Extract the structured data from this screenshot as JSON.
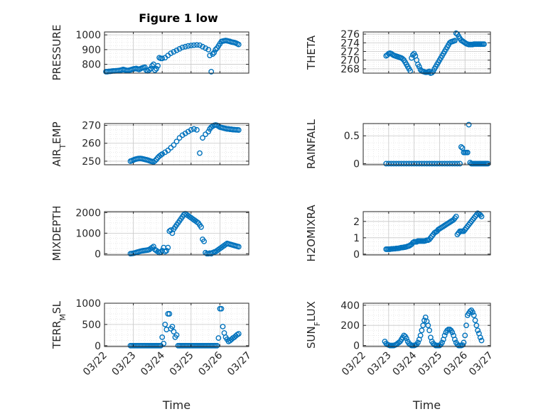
{
  "figure": {
    "title": "Figure 1 low",
    "marker_color": "#0072BD",
    "axis_color": "#262626",
    "grid_color": "#dcdcdc"
  },
  "chart_data": [
    {
      "type": "scatter",
      "ylabel": "PRESSURE",
      "ylabel_sub": "",
      "ylabel_tail": "",
      "xlabel": "",
      "xlim": [
        0,
        5
      ],
      "ylim": [
        740,
        1020
      ],
      "yticks": [
        800,
        900,
        1000
      ],
      "ytick_labels": [
        "800",
        "900",
        "1000"
      ],
      "x": [
        0.05,
        0.1,
        0.15,
        0.2,
        0.25,
        0.3,
        0.35,
        0.4,
        0.45,
        0.5,
        0.55,
        0.6,
        0.65,
        0.7,
        0.75,
        0.8,
        0.85,
        0.9,
        0.95,
        1.0,
        1.05,
        1.1,
        1.15,
        1.2,
        1.25,
        1.3,
        1.35,
        1.4,
        1.45,
        1.5,
        1.55,
        1.6,
        1.65,
        1.7,
        1.75,
        1.8,
        1.85,
        1.9,
        1.95,
        2.0,
        2.1,
        2.2,
        2.3,
        2.4,
        2.5,
        2.6,
        2.7,
        2.8,
        2.9,
        3.0,
        3.1,
        3.2,
        3.3,
        3.4,
        3.5,
        3.6,
        3.65,
        3.7,
        3.75,
        3.8,
        3.85,
        3.9,
        3.95,
        4.0,
        4.05,
        4.1,
        4.15,
        4.2,
        4.25,
        4.3,
        4.35,
        4.4,
        4.45,
        4.5,
        4.55,
        4.6,
        4.65
      ],
      "y": [
        750,
        750,
        752,
        752,
        754,
        755,
        755,
        756,
        757,
        758,
        760,
        762,
        765,
        762,
        760,
        758,
        760,
        762,
        765,
        768,
        770,
        772,
        768,
        765,
        770,
        775,
        778,
        780,
        760,
        755,
        762,
        770,
        790,
        800,
        760,
        770,
        790,
        845,
        840,
        840,
        845,
        860,
        875,
        885,
        895,
        905,
        915,
        920,
        925,
        928,
        930,
        932,
        930,
        920,
        910,
        900,
        860,
        750,
        870,
        880,
        900,
        910,
        925,
        940,
        955,
        958,
        960,
        962,
        960,
        958,
        955,
        952,
        950,
        948,
        945,
        940,
        935
      ]
    },
    {
      "type": "scatter",
      "ylabel": "THETA",
      "ylabel_sub": "",
      "ylabel_tail": "",
      "xlabel": "",
      "xlim": [
        0,
        5
      ],
      "ylim": [
        267,
        276.5
      ],
      "yticks": [
        268,
        270,
        272,
        274,
        276
      ],
      "ytick_labels": [
        "268",
        "270",
        "272",
        "274",
        "276"
      ],
      "x": [
        0.9,
        0.95,
        1.0,
        1.05,
        1.1,
        1.15,
        1.2,
        1.25,
        1.3,
        1.35,
        1.4,
        1.45,
        1.5,
        1.55,
        1.6,
        1.65,
        1.7,
        1.75,
        1.8,
        1.85,
        1.9,
        1.95,
        2.0,
        2.05,
        2.1,
        2.15,
        2.2,
        2.25,
        2.3,
        2.35,
        2.4,
        2.45,
        2.5,
        2.55,
        2.6,
        2.65,
        2.7,
        2.75,
        2.8,
        2.85,
        2.9,
        2.95,
        3.0,
        3.05,
        3.1,
        3.15,
        3.2,
        3.25,
        3.3,
        3.35,
        3.4,
        3.45,
        3.5,
        3.55,
        3.6,
        3.65,
        3.7,
        3.75,
        3.8,
        3.85,
        3.9,
        3.95,
        4.0,
        4.05,
        4.1,
        4.15,
        4.2,
        4.25,
        4.3,
        4.35,
        4.4,
        4.45,
        4.5,
        4.55,
        4.6,
        4.65,
        4.7,
        4.75
      ],
      "y": [
        271.0,
        271.2,
        271.5,
        271.6,
        271.5,
        271.3,
        271.1,
        271.0,
        270.9,
        270.8,
        270.7,
        270.6,
        270.5,
        270.3,
        270.0,
        269.5,
        269.0,
        268.5,
        268.0,
        267.5,
        270.5,
        271.2,
        271.5,
        271.0,
        270.0,
        269.0,
        268.5,
        267.8,
        267.5,
        267.4,
        267.3,
        267.2,
        267.2,
        267.3,
        267.4,
        267.0,
        267.1,
        267.4,
        268.0,
        268.5,
        269.0,
        269.5,
        270.0,
        270.5,
        271.0,
        271.5,
        272.0,
        272.5,
        273.0,
        273.5,
        274.0,
        274.2,
        274.3,
        274.4,
        274.5,
        276.2,
        276.0,
        275.5,
        275.0,
        274.6,
        274.4,
        274.2,
        274.0,
        273.8,
        273.7,
        273.6,
        273.6,
        273.6,
        273.6,
        273.7,
        273.7,
        273.7,
        273.7,
        273.7,
        273.7,
        273.7,
        273.7,
        273.7
      ]
    },
    {
      "type": "scatter",
      "ylabel": "AIR",
      "ylabel_sub": "T",
      "ylabel_tail": "EMP",
      "xlabel": "",
      "xlim": [
        0,
        5
      ],
      "ylim": [
        248,
        271
      ],
      "yticks": [
        250,
        260,
        270
      ],
      "ytick_labels": [
        "250",
        "260",
        "270"
      ],
      "x": [
        0.9,
        0.95,
        1.0,
        1.05,
        1.1,
        1.15,
        1.2,
        1.25,
        1.3,
        1.35,
        1.4,
        1.45,
        1.5,
        1.55,
        1.6,
        1.65,
        1.7,
        1.75,
        1.8,
        1.85,
        1.9,
        1.95,
        2.0,
        2.1,
        2.2,
        2.3,
        2.4,
        2.5,
        2.6,
        2.7,
        2.8,
        2.9,
        3.0,
        3.1,
        3.2,
        3.3,
        3.4,
        3.5,
        3.6,
        3.65,
        3.7,
        3.75,
        3.8,
        3.85,
        3.9,
        3.95,
        4.0,
        4.05,
        4.1,
        4.15,
        4.2,
        4.25,
        4.3,
        4.35,
        4.4,
        4.45,
        4.5,
        4.55,
        4.6,
        4.65
      ],
      "y": [
        250.0,
        250.3,
        250.6,
        251.0,
        251.2,
        251.4,
        251.5,
        251.5,
        251.4,
        251.2,
        251.0,
        250.8,
        250.6,
        250.3,
        250.0,
        249.8,
        249.6,
        250.2,
        251.0,
        252.0,
        252.8,
        253.4,
        254.0,
        255.0,
        256.0,
        257.5,
        259.0,
        261.0,
        263.0,
        264.5,
        265.5,
        266.5,
        267.5,
        268.0,
        267.5,
        254.5,
        263.0,
        265.0,
        266.5,
        268.0,
        269.0,
        269.5,
        270.0,
        270.2,
        270.0,
        269.5,
        269.0,
        268.8,
        268.6,
        268.4,
        268.2,
        268.0,
        268.0,
        267.8,
        267.8,
        267.6,
        267.6,
        267.5,
        267.5,
        267.4
      ]
    },
    {
      "type": "scatter",
      "ylabel": "RAINFALL",
      "ylabel_sub": "",
      "ylabel_tail": "",
      "xlabel": "",
      "xlim": [
        0,
        5
      ],
      "ylim": [
        -0.02,
        0.72
      ],
      "yticks": [
        0,
        0.5
      ],
      "ytick_labels": [
        "0",
        "0.5"
      ],
      "x": [
        0.9,
        1.0,
        1.1,
        1.2,
        1.3,
        1.4,
        1.5,
        1.6,
        1.7,
        1.8,
        1.9,
        2.0,
        2.1,
        2.2,
        2.3,
        2.4,
        2.5,
        2.6,
        2.7,
        2.8,
        2.9,
        3.0,
        3.1,
        3.2,
        3.3,
        3.4,
        3.5,
        3.6,
        3.7,
        3.8,
        3.85,
        3.9,
        3.95,
        4.0,
        4.05,
        4.1,
        4.15,
        4.2,
        4.25,
        4.3,
        4.35,
        4.4,
        4.45,
        4.5,
        4.55,
        4.6,
        4.65,
        4.7,
        4.75,
        4.8,
        4.85,
        4.9
      ],
      "y": [
        0,
        0,
        0,
        0,
        0,
        0,
        0,
        0,
        0,
        0,
        0,
        0,
        0,
        0,
        0,
        0,
        0,
        0,
        0,
        0,
        0,
        0,
        0,
        0,
        0,
        0,
        0,
        0,
        0,
        0,
        0.3,
        0.28,
        0.2,
        0.2,
        0.2,
        0.2,
        0.7,
        0.02,
        0,
        0,
        0,
        0,
        0,
        0,
        0,
        0,
        0,
        0,
        0,
        0,
        0,
        0
      ]
    },
    {
      "type": "scatter",
      "ylabel": "MIXDEPTH",
      "ylabel_sub": "",
      "ylabel_tail": "",
      "xlabel": "",
      "xlim": [
        0,
        5
      ],
      "ylim": [
        -60,
        2050
      ],
      "yticks": [
        0,
        1000,
        2000
      ],
      "ytick_labels": [
        "0",
        "1000",
        "2000"
      ],
      "x": [
        0.9,
        0.95,
        1.0,
        1.05,
        1.1,
        1.15,
        1.2,
        1.25,
        1.3,
        1.35,
        1.4,
        1.45,
        1.5,
        1.55,
        1.6,
        1.65,
        1.7,
        1.75,
        1.8,
        1.85,
        1.9,
        1.95,
        2.0,
        2.05,
        2.1,
        2.15,
        2.2,
        2.25,
        2.3,
        2.35,
        2.4,
        2.45,
        2.5,
        2.55,
        2.6,
        2.65,
        2.7,
        2.75,
        2.8,
        2.85,
        2.9,
        2.95,
        3.0,
        3.05,
        3.1,
        3.15,
        3.2,
        3.25,
        3.3,
        3.35,
        3.4,
        3.45,
        3.5,
        3.55,
        3.6,
        3.65,
        3.7,
        3.75,
        3.8,
        3.85,
        3.9,
        3.95,
        4.0,
        4.05,
        4.1,
        4.15,
        4.2,
        4.25,
        4.3,
        4.35,
        4.4,
        4.45,
        4.5,
        4.55,
        4.6,
        4.65
      ],
      "y": [
        0,
        10,
        20,
        40,
        60,
        80,
        100,
        120,
        140,
        150,
        160,
        170,
        180,
        200,
        250,
        300,
        350,
        200,
        150,
        100,
        50,
        80,
        150,
        300,
        100,
        150,
        300,
        1100,
        1150,
        1000,
        1200,
        1300,
        1400,
        1500,
        1600,
        1700,
        1800,
        1900,
        1950,
        1900,
        1850,
        1800,
        1750,
        1700,
        1650,
        1600,
        1550,
        1500,
        1400,
        1300,
        700,
        600,
        50,
        0,
        0,
        30,
        0,
        50,
        80,
        100,
        150,
        200,
        250,
        300,
        350,
        400,
        450,
        500,
        480,
        460,
        440,
        420,
        400,
        380,
        360,
        340
      ]
    },
    {
      "type": "scatter",
      "ylabel": "H2OMIXRA",
      "ylabel_sub": "",
      "ylabel_tail": "",
      "xlabel": "",
      "xlim": [
        0,
        5
      ],
      "ylim": [
        -0.05,
        2.6
      ],
      "yticks": [
        0,
        1,
        2
      ],
      "ytick_labels": [
        "0",
        "1",
        "2"
      ],
      "x": [
        0.9,
        0.95,
        1.0,
        1.05,
        1.1,
        1.15,
        1.2,
        1.25,
        1.3,
        1.35,
        1.4,
        1.45,
        1.5,
        1.55,
        1.6,
        1.65,
        1.7,
        1.75,
        1.8,
        1.85,
        1.9,
        1.95,
        2.0,
        2.05,
        2.1,
        2.15,
        2.2,
        2.25,
        2.3,
        2.35,
        2.4,
        2.45,
        2.5,
        2.55,
        2.6,
        2.65,
        2.7,
        2.75,
        2.8,
        2.85,
        2.9,
        2.95,
        3.0,
        3.05,
        3.1,
        3.15,
        3.2,
        3.25,
        3.3,
        3.35,
        3.4,
        3.45,
        3.5,
        3.55,
        3.6,
        3.65,
        3.7,
        3.75,
        3.8,
        3.85,
        3.9,
        3.95,
        4.0,
        4.05,
        4.1,
        4.15,
        4.2,
        4.25,
        4.3,
        4.35,
        4.4,
        4.45,
        4.5,
        4.55,
        4.6,
        4.65
      ],
      "y": [
        0.3,
        0.3,
        0.3,
        0.3,
        0.32,
        0.32,
        0.33,
        0.33,
        0.35,
        0.35,
        0.36,
        0.38,
        0.4,
        0.4,
        0.42,
        0.43,
        0.45,
        0.48,
        0.5,
        0.55,
        0.6,
        0.7,
        0.75,
        0.75,
        0.75,
        0.8,
        0.8,
        0.8,
        0.8,
        0.8,
        0.8,
        0.82,
        0.85,
        0.85,
        0.9,
        1.0,
        1.1,
        1.2,
        1.3,
        1.35,
        1.4,
        1.5,
        1.55,
        1.6,
        1.65,
        1.7,
        1.75,
        1.8,
        1.85,
        1.9,
        1.95,
        2.0,
        2.05,
        2.1,
        2.2,
        2.3,
        1.2,
        1.3,
        1.4,
        1.4,
        1.4,
        1.4,
        1.5,
        1.6,
        1.7,
        1.8,
        1.9,
        2.0,
        2.1,
        2.2,
        2.3,
        2.4,
        2.5,
        2.45,
        2.4,
        2.3
      ]
    },
    {
      "type": "scatter",
      "ylabel": "TERR",
      "ylabel_sub": "M",
      "ylabel_tail": "SL",
      "xlabel": "Time",
      "xlim": [
        0,
        5
      ],
      "ylim": [
        -20,
        1000
      ],
      "yticks": [
        0,
        500,
        1000
      ],
      "ytick_labels": [
        "0",
        "500",
        "1000"
      ],
      "x": [
        0.9,
        0.95,
        1.0,
        1.05,
        1.1,
        1.15,
        1.2,
        1.25,
        1.3,
        1.35,
        1.4,
        1.45,
        1.5,
        1.55,
        1.6,
        1.65,
        1.7,
        1.75,
        1.8,
        1.85,
        1.9,
        1.95,
        2.0,
        2.05,
        2.1,
        2.15,
        2.2,
        2.25,
        2.3,
        2.35,
        2.4,
        2.45,
        2.5,
        2.55,
        2.6,
        2.65,
        2.7,
        2.75,
        2.8,
        2.85,
        2.9,
        2.95,
        3.0,
        3.05,
        3.1,
        3.15,
        3.2,
        3.25,
        3.3,
        3.35,
        3.4,
        3.45,
        3.5,
        3.55,
        3.6,
        3.65,
        3.7,
        3.75,
        3.8,
        3.85,
        3.9,
        3.95,
        4.0,
        4.05,
        4.1,
        4.15,
        4.2,
        4.25,
        4.3,
        4.35,
        4.4,
        4.45,
        4.5,
        4.55,
        4.6,
        4.65
      ],
      "y": [
        0,
        0,
        0,
        0,
        0,
        0,
        0,
        0,
        0,
        0,
        0,
        0,
        0,
        0,
        0,
        0,
        0,
        0,
        0,
        0,
        0,
        0,
        200,
        50,
        500,
        380,
        750,
        750,
        400,
        450,
        330,
        200,
        250,
        0,
        0,
        0,
        0,
        0,
        0,
        0,
        0,
        0,
        0,
        0,
        0,
        0,
        0,
        0,
        0,
        0,
        0,
        0,
        0,
        0,
        0,
        0,
        0,
        0,
        0,
        0,
        0,
        180,
        870,
        870,
        450,
        300,
        200,
        150,
        100,
        120,
        150,
        180,
        200,
        230,
        260,
        280
      ]
    },
    {
      "type": "scatter",
      "ylabel": "SUN",
      "ylabel_sub": "F",
      "ylabel_tail": "LUX",
      "xlabel": "Time",
      "xlim": [
        0,
        5
      ],
      "ylim": [
        -10,
        420
      ],
      "yticks": [
        0,
        200,
        400
      ],
      "ytick_labels": [
        "0",
        "200",
        "400"
      ],
      "x": [
        0.85,
        0.9,
        0.95,
        1.0,
        1.05,
        1.1,
        1.15,
        1.2,
        1.25,
        1.3,
        1.35,
        1.4,
        1.45,
        1.5,
        1.55,
        1.6,
        1.65,
        1.7,
        1.75,
        1.8,
        1.85,
        1.9,
        1.95,
        2.0,
        2.05,
        2.1,
        2.15,
        2.2,
        2.25,
        2.3,
        2.35,
        2.4,
        2.45,
        2.5,
        2.55,
        2.6,
        2.65,
        2.7,
        2.75,
        2.8,
        2.85,
        2.9,
        2.95,
        3.0,
        3.05,
        3.1,
        3.15,
        3.2,
        3.25,
        3.3,
        3.35,
        3.4,
        3.45,
        3.5,
        3.55,
        3.6,
        3.65,
        3.7,
        3.75,
        3.8,
        3.85,
        3.9,
        3.95,
        4.0,
        4.05,
        4.1,
        4.15,
        4.2,
        4.25,
        4.3,
        4.35,
        4.4,
        4.45,
        4.5,
        4.55,
        4.6,
        4.65
      ],
      "y": [
        40,
        20,
        10,
        5,
        0,
        0,
        0,
        0,
        5,
        10,
        20,
        30,
        40,
        60,
        80,
        100,
        90,
        70,
        40,
        20,
        10,
        0,
        0,
        0,
        5,
        10,
        30,
        60,
        100,
        150,
        200,
        250,
        280,
        240,
        200,
        150,
        80,
        40,
        20,
        10,
        0,
        0,
        0,
        0,
        10,
        30,
        60,
        100,
        130,
        150,
        160,
        160,
        150,
        130,
        100,
        60,
        30,
        10,
        0,
        0,
        0,
        5,
        30,
        100,
        200,
        300,
        320,
        340,
        350,
        330,
        300,
        250,
        200,
        150,
        120,
        80,
        50
      ]
    }
  ],
  "xaxis": {
    "tick_labels": [
      "03/22",
      "03/23",
      "03/24",
      "03/25",
      "03/26",
      "03/27"
    ]
  }
}
